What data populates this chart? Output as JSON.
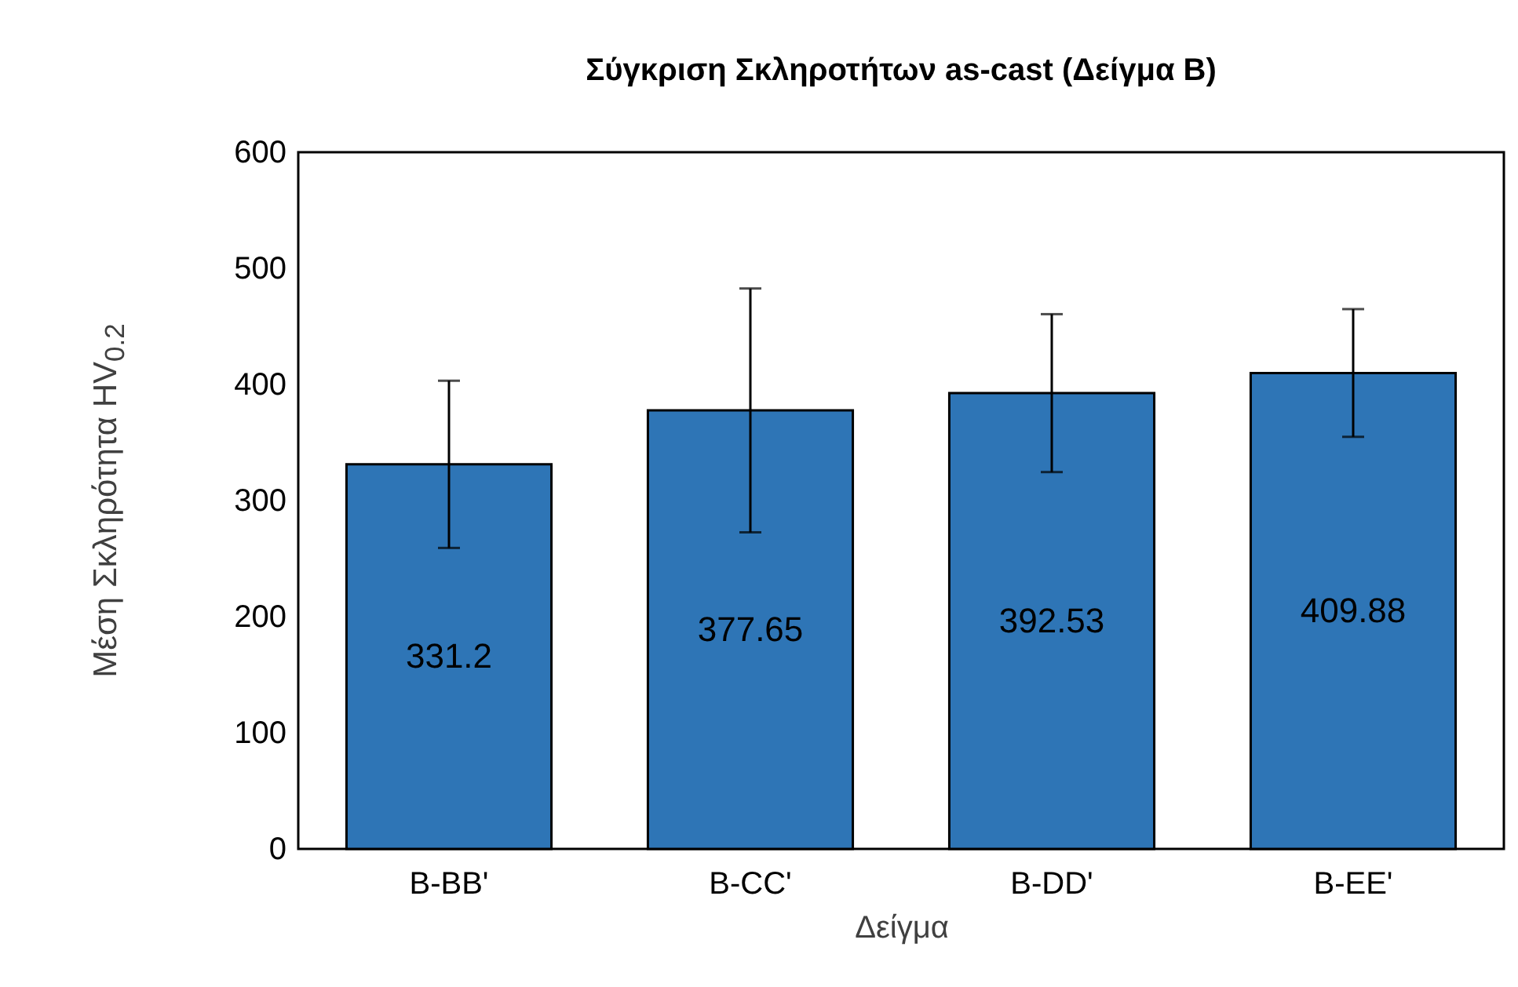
{
  "chart_data": {
    "type": "bar",
    "title": "Σύγκριση Σκληροτήτων as-cast (Δείγμα B)",
    "xlabel": "Δείγμα",
    "ylabel": "Μέση Σκληρότητα HV$_{0.2}$",
    "categories": [
      "B-BB'",
      "B-CC'",
      "B-DD'",
      "B-EE'"
    ],
    "values": [
      331.2,
      377.65,
      392.53,
      409.88
    ],
    "errors": [
      72,
      105,
      68,
      55
    ],
    "color": "#2e75b6",
    "data_labels": true,
    "grid": false,
    "ylim": [
      0,
      600
    ],
    "yticks": [
      0,
      100,
      200,
      300,
      400,
      500,
      600
    ]
  }
}
